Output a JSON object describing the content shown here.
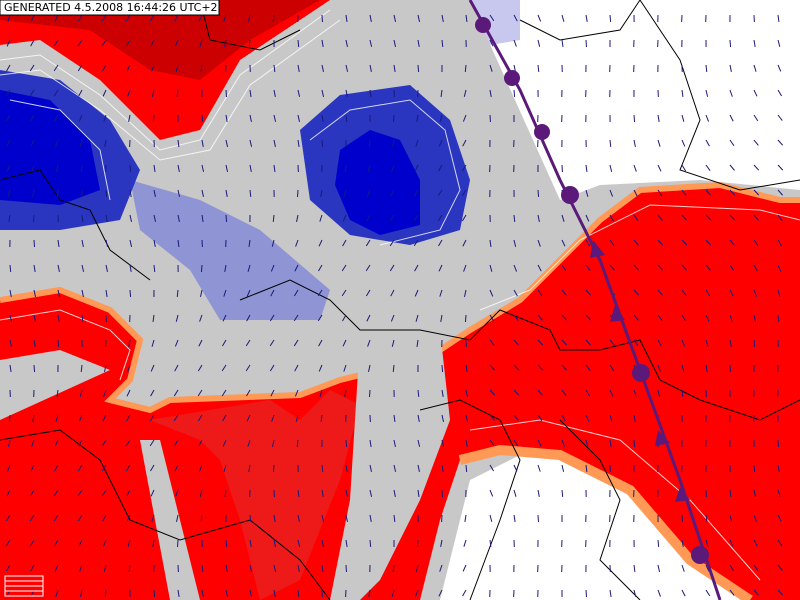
{
  "header": {
    "timestamp": "GENERATED 4.5.2008 16:44:26 UTC+2"
  }
}
